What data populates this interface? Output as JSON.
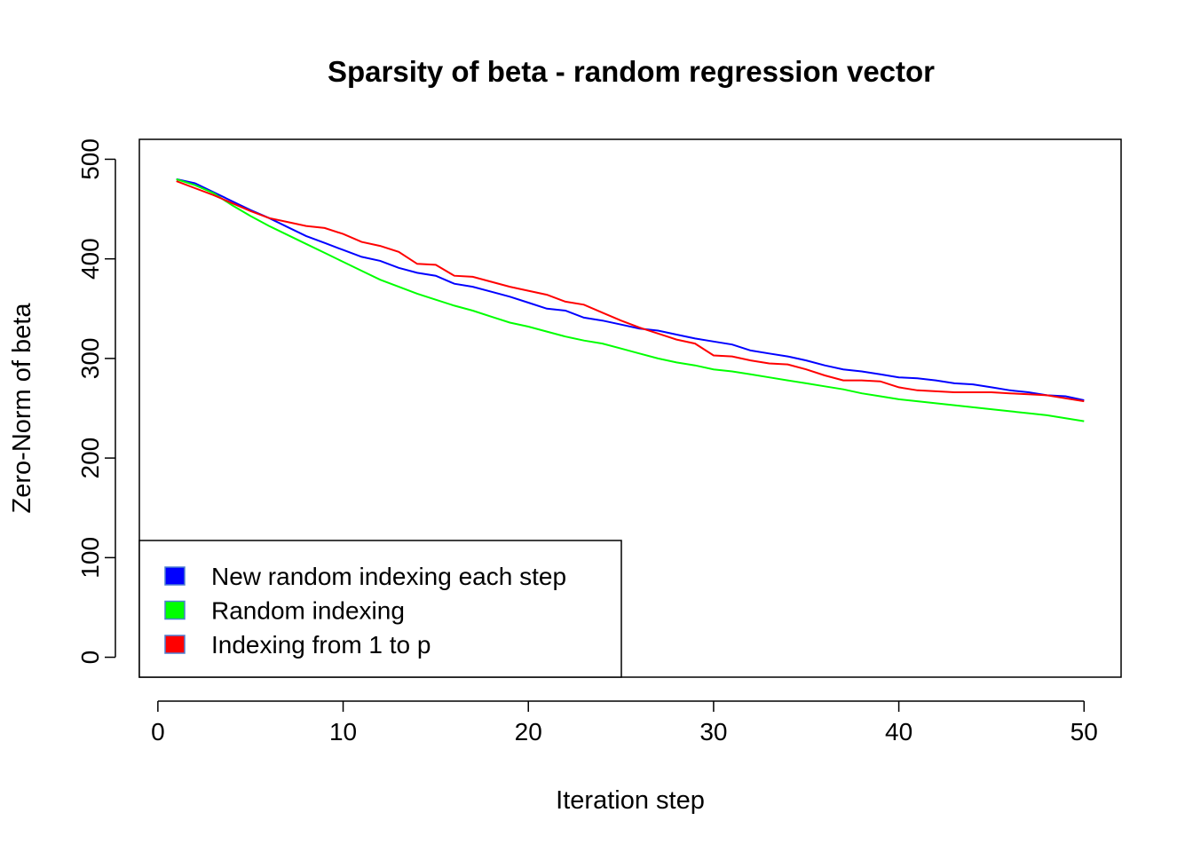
{
  "chart_data": {
    "type": "line",
    "title": "Sparsity of beta - random regression vector",
    "xlabel": "Iteration step",
    "ylabel": "Zero-Norm of beta",
    "xlim": [
      -1,
      52
    ],
    "ylim": [
      -20,
      520
    ],
    "x_ticks": [
      0,
      10,
      20,
      30,
      40,
      50
    ],
    "y_ticks": [
      0,
      100,
      200,
      300,
      400,
      500
    ],
    "legend_position": "bottom-left",
    "x": [
      1,
      2,
      3,
      4,
      5,
      6,
      7,
      8,
      9,
      10,
      11,
      12,
      13,
      14,
      15,
      16,
      17,
      18,
      19,
      20,
      21,
      22,
      23,
      24,
      25,
      26,
      27,
      28,
      29,
      30,
      31,
      32,
      33,
      34,
      35,
      36,
      37,
      38,
      39,
      40,
      41,
      42,
      43,
      44,
      45,
      46,
      47,
      48,
      49,
      50
    ],
    "series": [
      {
        "name": "New random indexing each step",
        "color": "#0000ff",
        "values": [
          480,
          476,
          467,
          458,
          449,
          441,
          432,
          423,
          416,
          409,
          402,
          398,
          391,
          386,
          383,
          375,
          372,
          367,
          362,
          356,
          350,
          348,
          341,
          338,
          334,
          330,
          328,
          324,
          320,
          317,
          314,
          308,
          305,
          302,
          298,
          293,
          289,
          287,
          284,
          281,
          280,
          278,
          275,
          274,
          271,
          268,
          266,
          263,
          262,
          258
        ]
      },
      {
        "name": "Random indexing",
        "color": "#00ff00",
        "values": [
          480,
          474,
          466,
          454,
          443,
          433,
          424,
          415,
          406,
          397,
          388,
          379,
          372,
          365,
          359,
          353,
          348,
          342,
          336,
          332,
          327,
          322,
          318,
          315,
          310,
          305,
          300,
          296,
          293,
          289,
          287,
          284,
          281,
          278,
          275,
          272,
          269,
          265,
          262,
          259,
          257,
          255,
          253,
          251,
          249,
          247,
          245,
          243,
          240,
          237
        ]
      },
      {
        "name": "Indexing from 1 to p",
        "color": "#ff0000",
        "values": [
          478,
          471,
          464,
          456,
          448,
          441,
          437,
          433,
          431,
          425,
          417,
          413,
          407,
          395,
          394,
          383,
          382,
          377,
          372,
          368,
          364,
          357,
          354,
          346,
          338,
          331,
          325,
          319,
          315,
          303,
          302,
          298,
          295,
          294,
          289,
          283,
          278,
          278,
          277,
          271,
          268,
          267,
          266,
          266,
          266,
          265,
          264,
          263,
          260,
          257
        ]
      }
    ]
  }
}
